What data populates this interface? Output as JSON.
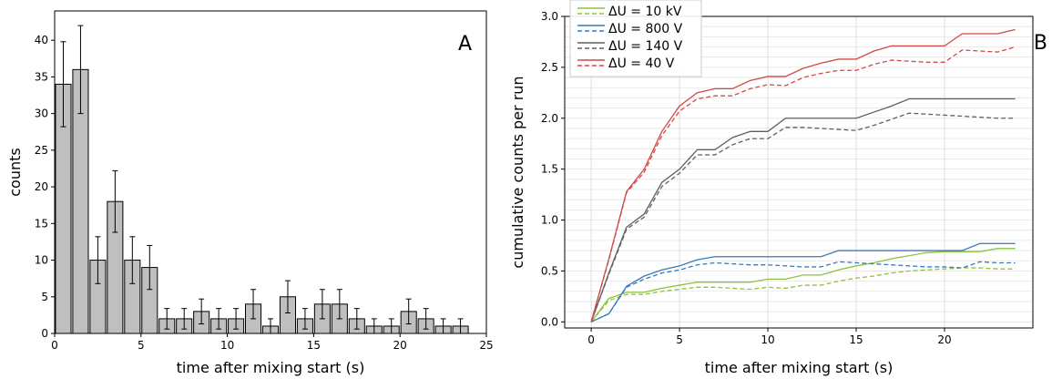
{
  "chart_data": [
    {
      "type": "bar",
      "panel_label": "A",
      "xlabel": "time after mixing start (s)",
      "ylabel": "counts",
      "xlim": [
        0,
        25
      ],
      "ylim": [
        0,
        44
      ],
      "xticks": [
        0,
        5,
        10,
        15,
        20,
        25
      ],
      "yticks": [
        0,
        5,
        10,
        15,
        20,
        25,
        30,
        35,
        40
      ],
      "bar_width": 0.9,
      "bar_color": "#bfbfbf",
      "bars": [
        {
          "x": 0.5,
          "value": 34,
          "error": 5.8
        },
        {
          "x": 1.5,
          "value": 36,
          "error": 6.0
        },
        {
          "x": 2.5,
          "value": 10,
          "error": 3.2
        },
        {
          "x": 3.5,
          "value": 18,
          "error": 4.2
        },
        {
          "x": 4.5,
          "value": 10,
          "error": 3.2
        },
        {
          "x": 5.5,
          "value": 9,
          "error": 3.0
        },
        {
          "x": 6.5,
          "value": 2,
          "error": 1.4
        },
        {
          "x": 7.5,
          "value": 2,
          "error": 1.4
        },
        {
          "x": 8.5,
          "value": 3,
          "error": 1.7
        },
        {
          "x": 9.5,
          "value": 2,
          "error": 1.4
        },
        {
          "x": 10.5,
          "value": 2,
          "error": 1.4
        },
        {
          "x": 11.5,
          "value": 4,
          "error": 2.0
        },
        {
          "x": 12.5,
          "value": 1,
          "error": 1.0
        },
        {
          "x": 13.5,
          "value": 5,
          "error": 2.2
        },
        {
          "x": 14.5,
          "value": 2,
          "error": 1.4
        },
        {
          "x": 15.5,
          "value": 4,
          "error": 2.0
        },
        {
          "x": 16.5,
          "value": 4,
          "error": 2.0
        },
        {
          "x": 17.5,
          "value": 2,
          "error": 1.4
        },
        {
          "x": 18.5,
          "value": 1,
          "error": 1.0
        },
        {
          "x": 19.5,
          "value": 1,
          "error": 1.0
        },
        {
          "x": 20.5,
          "value": 3,
          "error": 1.7
        },
        {
          "x": 21.5,
          "value": 2,
          "error": 1.4
        },
        {
          "x": 22.5,
          "value": 1,
          "error": 1.0
        },
        {
          "x": 23.5,
          "value": 1,
          "error": 1.0
        }
      ]
    },
    {
      "type": "line",
      "panel_label": "B",
      "xlabel": "time after mixing start (s)",
      "ylabel": "cumulative counts per run",
      "xlim": [
        -1.5,
        25
      ],
      "ylim": [
        -0.06,
        3.0
      ],
      "xticks": [
        0,
        5,
        10,
        15,
        20
      ],
      "yticks": [
        0.0,
        0.5,
        1.0,
        1.5,
        2.0,
        2.5,
        3.0
      ],
      "minor_ygrid_step": 0.1,
      "grid": true,
      "legend_position": "top-left",
      "x": [
        0,
        1,
        2,
        3,
        4,
        5,
        6,
        7,
        8,
        9,
        10,
        11,
        12,
        13,
        14,
        15,
        16,
        17,
        18,
        19,
        20,
        21,
        22,
        23,
        24
      ],
      "series": [
        {
          "name": "ΔU = 10 kV",
          "color": "#8fc13e",
          "style": "solid",
          "values": [
            0,
            0.23,
            0.29,
            0.29,
            0.33,
            0.36,
            0.39,
            0.39,
            0.39,
            0.39,
            0.42,
            0.42,
            0.46,
            0.46,
            0.51,
            0.55,
            0.58,
            0.62,
            0.65,
            0.68,
            0.69,
            0.69,
            0.69,
            0.72,
            0.72
          ]
        },
        {
          "name": "ΔU = 10 kV",
          "color": "#8fc13e",
          "style": "dashed",
          "values": [
            0,
            0.21,
            0.27,
            0.27,
            0.3,
            0.32,
            0.34,
            0.34,
            0.33,
            0.32,
            0.34,
            0.33,
            0.36,
            0.36,
            0.4,
            0.43,
            0.45,
            0.48,
            0.5,
            0.51,
            0.52,
            0.53,
            0.53,
            0.52,
            0.52
          ]
        },
        {
          "name": "ΔU = 800 V",
          "color": "#3a7ab7",
          "style": "solid",
          "values": [
            0,
            0.08,
            0.35,
            0.45,
            0.51,
            0.55,
            0.61,
            0.64,
            0.64,
            0.64,
            0.64,
            0.64,
            0.64,
            0.64,
            0.7,
            0.7,
            0.7,
            0.7,
            0.7,
            0.7,
            0.7,
            0.7,
            0.77,
            0.77,
            0.77
          ]
        },
        {
          "name": "ΔU = 800 V",
          "color": "#3a7ab7",
          "style": "dashed",
          "values": [
            0,
            0.08,
            0.34,
            0.42,
            0.48,
            0.51,
            0.56,
            0.58,
            0.57,
            0.56,
            0.56,
            0.55,
            0.54,
            0.54,
            0.59,
            0.58,
            0.57,
            0.56,
            0.55,
            0.54,
            0.54,
            0.53,
            0.59,
            0.58,
            0.58
          ]
        },
        {
          "name": "ΔU = 140 V",
          "color": "#5f5f5f",
          "style": "solid",
          "values": [
            0,
            0.48,
            0.93,
            1.06,
            1.37,
            1.5,
            1.69,
            1.69,
            1.81,
            1.87,
            1.87,
            2.0,
            2.0,
            2.0,
            2.0,
            2.0,
            2.06,
            2.12,
            2.19,
            2.19,
            2.19,
            2.19,
            2.19,
            2.19,
            2.19
          ]
        },
        {
          "name": "ΔU = 140 V",
          "color": "#5f5f5f",
          "style": "dashed",
          "values": [
            0,
            0.47,
            0.91,
            1.03,
            1.33,
            1.46,
            1.64,
            1.64,
            1.74,
            1.8,
            1.8,
            1.91,
            1.91,
            1.9,
            1.89,
            1.88,
            1.93,
            1.99,
            2.05,
            2.04,
            2.03,
            2.02,
            2.01,
            2.0,
            2.0
          ]
        },
        {
          "name": "ΔU = 40 V",
          "color": "#d04a45",
          "style": "solid",
          "values": [
            0,
            0.62,
            1.28,
            1.5,
            1.87,
            2.12,
            2.25,
            2.29,
            2.29,
            2.37,
            2.41,
            2.41,
            2.49,
            2.54,
            2.58,
            2.58,
            2.66,
            2.71,
            2.71,
            2.71,
            2.71,
            2.83,
            2.83,
            2.83,
            2.87
          ]
        },
        {
          "name": "ΔU = 40 V",
          "color": "#d04a45",
          "style": "dashed",
          "values": [
            0,
            0.61,
            1.27,
            1.47,
            1.83,
            2.07,
            2.19,
            2.22,
            2.22,
            2.29,
            2.33,
            2.32,
            2.4,
            2.44,
            2.47,
            2.47,
            2.53,
            2.57,
            2.56,
            2.55,
            2.55,
            2.67,
            2.66,
            2.65,
            2.7
          ]
        }
      ]
    }
  ]
}
